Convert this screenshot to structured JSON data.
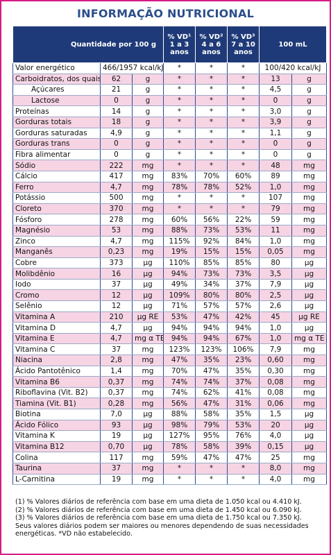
{
  "title": "INFORMAÇÃO NUTRICIONAL",
  "table": {
    "header": [
      "Quantidade por 100 g",
      "% VD¹ 1 a 3 anos",
      "% VD² 4 a 6 anos",
      "% VD³ 7 a 10 anos",
      "100 mL"
    ],
    "rows": [
      {
        "cells": [
          "Valor energético",
          "466/1957 kcal/kJ",
          "*",
          "*",
          "*",
          "100/420 kcal/kJ"
        ]
      },
      {
        "cells": [
          "Carboidratos, dos quais:",
          "62",
          "g",
          "*",
          "*",
          "*",
          "13",
          "g"
        ]
      },
      {
        "cells": [
          "Açúcares",
          "21",
          "g",
          "*",
          "*",
          "*",
          "4,5",
          "g"
        ],
        "indent": true
      },
      {
        "cells": [
          "Lactose",
          "0",
          "g",
          "*",
          "*",
          "*",
          "0",
          "g"
        ],
        "indent": true
      },
      {
        "cells": [
          "Proteínas",
          "14",
          "g",
          "*",
          "*",
          "*",
          "3,0",
          "g"
        ]
      },
      {
        "cells": [
          "Gorduras totais",
          "18",
          "g",
          "*",
          "*",
          "*",
          "3,9",
          "g"
        ]
      },
      {
        "cells": [
          "Gorduras saturadas",
          "4,9",
          "g",
          "*",
          "*",
          "*",
          "1,1",
          "g"
        ]
      },
      {
        "cells": [
          "Gorduras trans",
          "0",
          "g",
          "*",
          "*",
          "*",
          "0",
          "g"
        ]
      },
      {
        "cells": [
          "Fibra alimentar",
          "0",
          "g",
          "*",
          "*",
          "*",
          "0",
          "g"
        ]
      },
      {
        "cells": [
          "Sódio",
          "222",
          "mg",
          "*",
          "*",
          "*",
          "48",
          "mg"
        ]
      },
      {
        "cells": [
          "Cálcio",
          "417",
          "mg",
          "83%",
          "70%",
          "60%",
          "89",
          "mg"
        ]
      },
      {
        "cells": [
          "Ferro",
          "4,7",
          "mg",
          "78%",
          "78%",
          "52%",
          "1,0",
          "mg"
        ]
      },
      {
        "cells": [
          "Potássio",
          "500",
          "mg",
          "*",
          "*",
          "*",
          "107",
          "mg"
        ]
      },
      {
        "cells": [
          "Cloreto",
          "370",
          "mg",
          "*",
          "*",
          "*",
          "79",
          "mg"
        ]
      },
      {
        "cells": [
          "Fósforo",
          "278",
          "mg",
          "60%",
          "56%",
          "22%",
          "59",
          "mg"
        ]
      },
      {
        "cells": [
          "Magnésio",
          "53",
          "mg",
          "88%",
          "73%",
          "53%",
          "11",
          "mg"
        ]
      },
      {
        "cells": [
          "Zinco",
          "4,7",
          "mg",
          "115%",
          "92%",
          "84%",
          "1,0",
          "mg"
        ]
      },
      {
        "cells": [
          "Manganês",
          "0,23",
          "mg",
          "19%",
          "15%",
          "15%",
          "0,05",
          "mg"
        ]
      },
      {
        "cells": [
          "Cobre",
          "373",
          "µg",
          "110%",
          "85%",
          "85%",
          "80",
          "µg"
        ]
      },
      {
        "cells": [
          "Molibdênio",
          "16",
          "µg",
          "94%",
          "73%",
          "73%",
          "3,5",
          "µg"
        ]
      },
      {
        "cells": [
          "Iodo",
          "37",
          "µg",
          "49%",
          "34%",
          "37%",
          "7,9",
          "µg"
        ]
      },
      {
        "cells": [
          "Cromo",
          "12",
          "µg",
          "109%",
          "80%",
          "80%",
          "2,5",
          "µg"
        ]
      },
      {
        "cells": [
          "Selênio",
          "12",
          "µg",
          "71%",
          "57%",
          "57%",
          "2,6",
          "µg"
        ]
      },
      {
        "cells": [
          "Vitamina A",
          "210",
          "µg RE",
          "53%",
          "47%",
          "42%",
          "45",
          "µg RE"
        ]
      },
      {
        "cells": [
          "Vitamina D",
          "4,7",
          "µg",
          "94%",
          "94%",
          "94%",
          "1,0",
          "µg"
        ]
      },
      {
        "cells": [
          "Vitamina E",
          "4,7",
          "mg α TE",
          "94%",
          "94%",
          "67%",
          "1,0",
          "mg α TE"
        ]
      },
      {
        "cells": [
          "Vitamina C",
          "37",
          "mg",
          "123%",
          "123%",
          "106%",
          "7,9",
          "mg"
        ]
      },
      {
        "cells": [
          "Niacina",
          "2,8",
          "mg",
          "47%",
          "35%",
          "23%",
          "0,60",
          "mg"
        ]
      },
      {
        "cells": [
          "Ácido Pantotênico",
          "1,4",
          "mg",
          "70%",
          "47%",
          "35%",
          "0,30",
          "mg"
        ]
      },
      {
        "cells": [
          "Vitamina B6",
          "0,37",
          "mg",
          "74%",
          "74%",
          "37%",
          "0,08",
          "mg"
        ]
      },
      {
        "cells": [
          "Riboflavina (Vit. B2)",
          "0,37",
          "mg",
          "74%",
          "62%",
          "41%",
          "0,08",
          "mg"
        ]
      },
      {
        "cells": [
          "Tiamina (Vit. B1)",
          "0,28",
          "mg",
          "56%",
          "47%",
          "31%",
          "0,06",
          "mg"
        ]
      },
      {
        "cells": [
          "Biotina",
          "7,0",
          "µg",
          "88%",
          "58%",
          "35%",
          "1,5",
          "µg"
        ]
      },
      {
        "cells": [
          "Ácido Fólico",
          "93",
          "µg",
          "98%",
          "79%",
          "53%",
          "20",
          "µg"
        ]
      },
      {
        "cells": [
          "Vitamina K",
          "19",
          "µg",
          "127%",
          "95%",
          "76%",
          "4,0",
          "µg"
        ]
      },
      {
        "cells": [
          "Vitamina B12",
          "0,70",
          "µg",
          "78%",
          "58%",
          "39%",
          "0,15",
          "µg"
        ]
      },
      {
        "cells": [
          "Colina",
          "117",
          "mg",
          "59%",
          "47%",
          "47%",
          "25",
          "mg"
        ]
      },
      {
        "cells": [
          "Taurina",
          "37",
          "mg",
          "*",
          "*",
          "*",
          "8,0",
          "mg"
        ]
      },
      {
        "cells": [
          "L-Carnitina",
          "19",
          "mg",
          "*",
          "*",
          "*",
          "4,0",
          "mg"
        ]
      }
    ]
  },
  "footnotes": [
    "(1) % Valores diários de referência com base em uma dieta de 1.050 kcal ou 4.410 kJ.",
    "(2) % Valores diários de referência com base em uma dieta de 1.450 kcal ou 6.090 kJ.",
    "(3) % Valores diários de referência com base em uma dieta de 1.750 kcal ou 7.350 kJ.",
    "Seus valores diários podem ser maiores ou menores dependendo de suas necessidades energéticas. *VD não estabelecido."
  ]
}
